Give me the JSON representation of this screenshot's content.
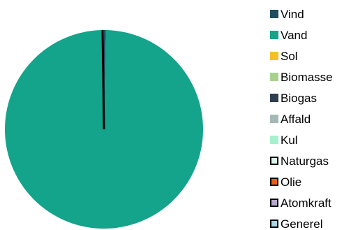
{
  "chart_data": {
    "type": "pie",
    "title": "",
    "slices": [
      {
        "label": "Vind",
        "value": 0.3,
        "color": "#1f4e5f",
        "border": ""
      },
      {
        "label": "Vand",
        "value": 99.7,
        "color": "#14a38b",
        "border": ""
      },
      {
        "label": "Sol",
        "value": 0,
        "color": "#f2c029",
        "border": ""
      },
      {
        "label": "Biomasse",
        "value": 0,
        "color": "#a9d18e",
        "border": ""
      },
      {
        "label": "Biogas",
        "value": 0,
        "color": "#2e3f50",
        "border": ""
      },
      {
        "label": "Affald",
        "value": 0,
        "color": "#a5b8b8",
        "border": ""
      },
      {
        "label": "Kul",
        "value": 0,
        "color": "#a8f0d0",
        "border": ""
      },
      {
        "label": "Naturgas",
        "value": 0,
        "color": "#d9f7e8",
        "border": "#000000"
      },
      {
        "label": "Olie",
        "value": 0,
        "color": "#e8600c",
        "border": "#000000"
      },
      {
        "label": "Atomkraft",
        "value": 0,
        "color": "#b8a8cc",
        "border": "#000000"
      },
      {
        "label": "Generel",
        "value": 0,
        "color": "#a8d4e6",
        "border": "#000000"
      }
    ],
    "legend_position": "right"
  }
}
